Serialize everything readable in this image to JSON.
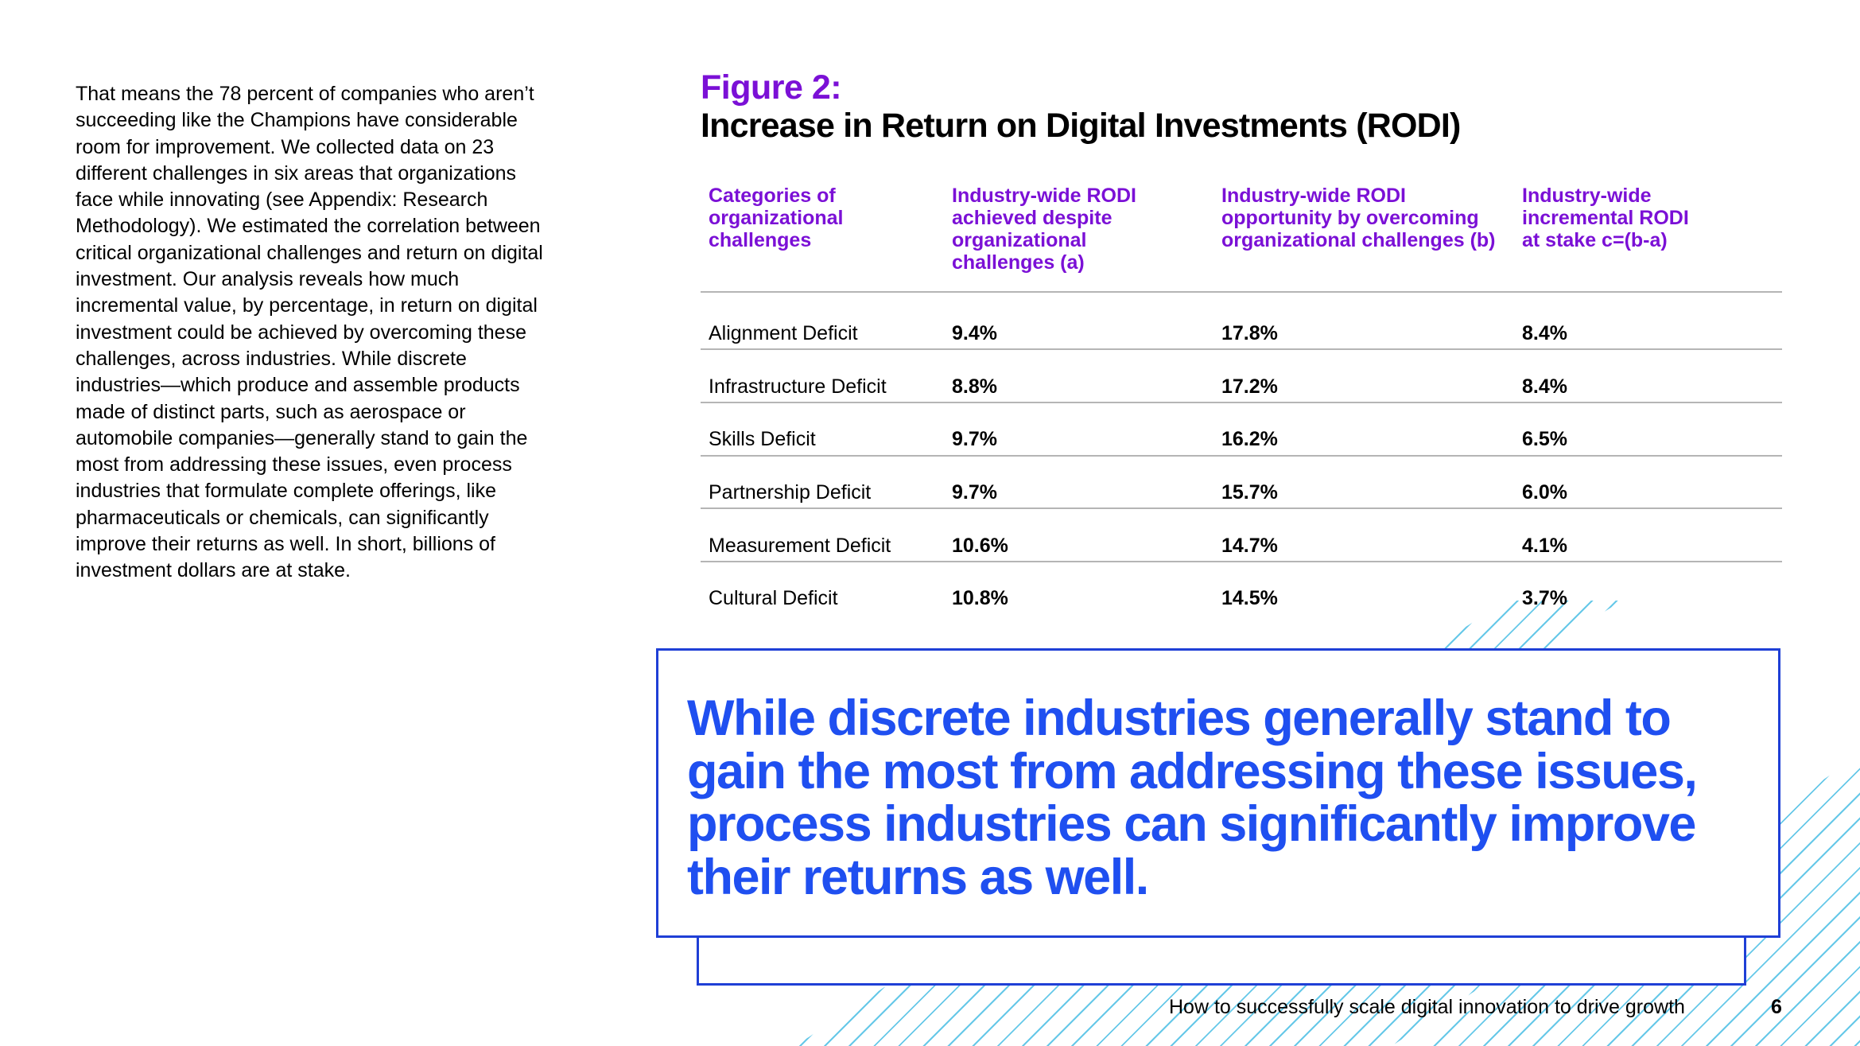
{
  "colors": {
    "purple": "#7b10d6",
    "blue": "#1f4ff0",
    "hatch": "#33b6e0"
  },
  "intro_text": "That means the 78 percent of companies who aren’t succeeding like the Champions have considerable room for improvement. We collected data on 23 different challenges in six areas that organizations face while innovating (see Appendix: Research Methodology). We estimated the correlation between critical organizational challenges and return on digital investment. Our analysis reveals how much incremental value, by percentage, in return on digital investment could be achieved by overcoming these challenges, across industries. While discrete industries—which produce and assemble products made of distinct parts, such as aerospace or automobile companies—generally stand to gain the most from addressing these issues, even process industries that formulate complete offerings, like pharmaceuticals or chemicals, can significantly improve their returns as well. In short, billions of investment dollars are at stake.",
  "figure": {
    "label": "Figure 2:",
    "title": "Increase in Return on Digital Investments (RODI)"
  },
  "table": {
    "headers": [
      "Categories of organizational challenges",
      "Industry-wide RODI achieved despite organizational challenges (a)",
      "Industry-wide RODI opportunity by overcoming organizational challenges (b)",
      "Industry-wide incremental RODI at stake c=(b-a)"
    ],
    "rows": [
      {
        "category": "Alignment Deficit",
        "a": "9.4%",
        "b": "17.8%",
        "c": "8.4%"
      },
      {
        "category": "Infrastructure Deficit",
        "a": "8.8%",
        "b": "17.2%",
        "c": "8.4%"
      },
      {
        "category": "Skills Deficit",
        "a": "9.7%",
        "b": "16.2%",
        "c": "6.5%"
      },
      {
        "category": "Partnership Deficit",
        "a": "9.7%",
        "b": "15.7%",
        "c": "6.0%"
      },
      {
        "category": "Measurement Deficit",
        "a": "10.6%",
        "b": "14.7%",
        "c": "4.1%"
      },
      {
        "category": "Cultural Deficit",
        "a": "10.8%",
        "b": "14.5%",
        "c": "3.7%"
      }
    ]
  },
  "callout": "While discrete industries generally stand to gain the most from addressing these issues, process industries can significantly improve their returns as well.",
  "footer": {
    "title": "How to successfully scale digital innovation to drive growth",
    "page": "6"
  }
}
